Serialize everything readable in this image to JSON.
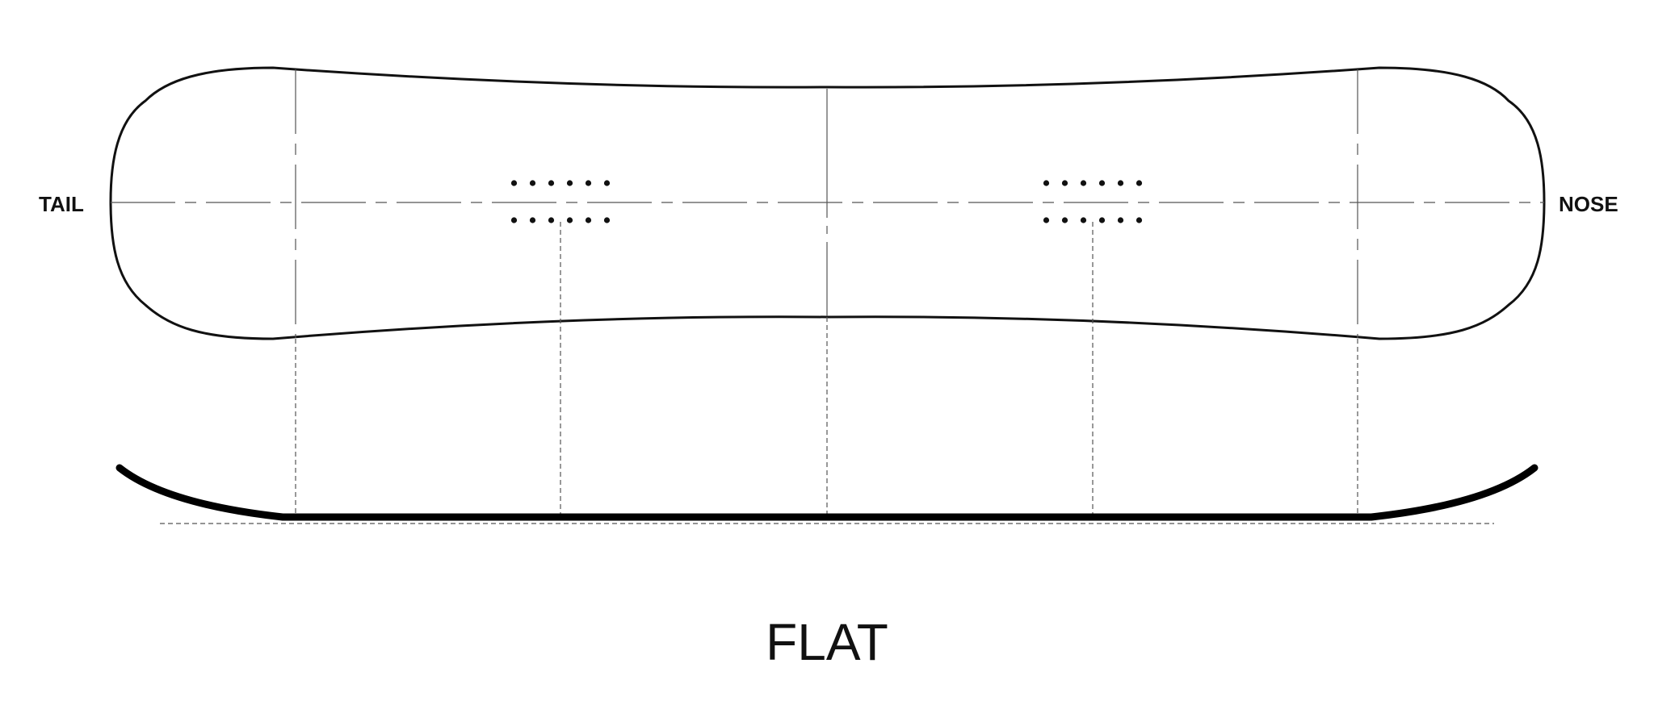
{
  "labels": {
    "tail": "TAIL",
    "nose": "NOSE",
    "profile": "FLAT"
  },
  "binding_inserts": {
    "per_row": 6,
    "rows_per_binding": 2,
    "bindings": 2
  },
  "colors": {
    "background": "#ffffff",
    "outline": "#111111",
    "guide": "#555555",
    "text": "#111111"
  }
}
